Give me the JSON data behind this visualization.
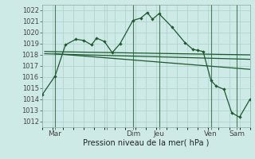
{
  "background_color": "#ceeae6",
  "grid_color": "#b0d4ce",
  "line_color": "#1a5c2a",
  "vline_color": "#4a7a5a",
  "title": "Pression niveau de la mer( hPa )",
  "xlim": [
    0,
    8
  ],
  "ylim": [
    1011.5,
    1022.5
  ],
  "yticks": [
    1012,
    1013,
    1014,
    1015,
    1016,
    1017,
    1018,
    1019,
    1020,
    1021,
    1022
  ],
  "xtick_positions": [
    0.5,
    2.5,
    3.5,
    4.5,
    6.5,
    7.5
  ],
  "xtick_labels": [
    "Mar",
    "",
    "Dim",
    "Jeu",
    "Ven",
    "Sam"
  ],
  "vlines": [
    0.5,
    3.5,
    4.5,
    6.5,
    7.5
  ],
  "series1": {
    "x": [
      0.0,
      0.5,
      0.9,
      1.3,
      1.6,
      1.9,
      2.1,
      2.4,
      2.7,
      3.0,
      3.5,
      3.8,
      4.05,
      4.25,
      4.5,
      5.0,
      5.5,
      5.8,
      6.0,
      6.2,
      6.5,
      6.7,
      7.0,
      7.3,
      7.6,
      8.0
    ],
    "y": [
      1014.4,
      1016.1,
      1018.9,
      1019.4,
      1019.3,
      1018.9,
      1019.5,
      1019.2,
      1018.2,
      1019.0,
      1021.1,
      1021.3,
      1021.8,
      1021.2,
      1021.7,
      1020.5,
      1019.1,
      1018.5,
      1018.4,
      1018.3,
      1015.7,
      1015.2,
      1014.9,
      1012.8,
      1012.4,
      1014.0
    ]
  },
  "series2_linear": {
    "x": [
      0.1,
      8.0
    ],
    "y": [
      1018.3,
      1018.0
    ]
  },
  "series3_linear": {
    "x": [
      0.1,
      8.0
    ],
    "y": [
      1018.1,
      1017.6
    ]
  },
  "series4_linear": {
    "x": [
      0.5,
      8.0
    ],
    "y": [
      1018.1,
      1016.7
    ]
  }
}
